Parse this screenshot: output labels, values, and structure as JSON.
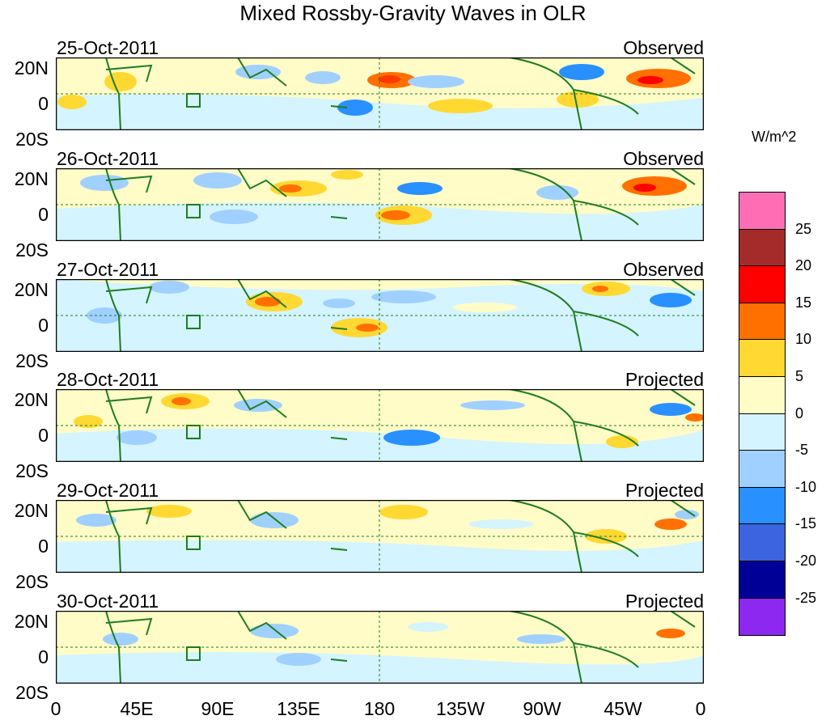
{
  "figure": {
    "title": "Mixed Rossby-Gravity Waves in OLR",
    "units": "W/m^2",
    "lat_labels": [
      "20N",
      "0",
      "20S"
    ],
    "lon_labels": [
      "0",
      "45E",
      "90E",
      "135E",
      "180",
      "135W",
      "90W",
      "45W",
      "0"
    ]
  },
  "panels": [
    {
      "date": "25-Oct-2011",
      "status": "Observed"
    },
    {
      "date": "26-Oct-2011",
      "status": "Observed"
    },
    {
      "date": "27-Oct-2011",
      "status": "Observed"
    },
    {
      "date": "28-Oct-2011",
      "status": "Projected"
    },
    {
      "date": "29-Oct-2011",
      "status": "Projected"
    },
    {
      "date": "30-Oct-2011",
      "status": "Projected"
    }
  ],
  "colorbar": {
    "labels": [
      "25",
      "20",
      "15",
      "10",
      "5",
      "0",
      "-5",
      "-10",
      "-15",
      "-20",
      "-25"
    ],
    "colors": [
      "#ff6eb4",
      "#a52a2a",
      "#ff0000",
      "#ff7000",
      "#ffd832",
      "#fffcc8",
      "#d4f4ff",
      "#a0d0ff",
      "#2890ff",
      "#3c64e0",
      "#000096",
      "#8c28f0"
    ]
  },
  "colors": {
    "coast": "#1e7d1e",
    "ocean_base": "#fffcc8"
  }
}
